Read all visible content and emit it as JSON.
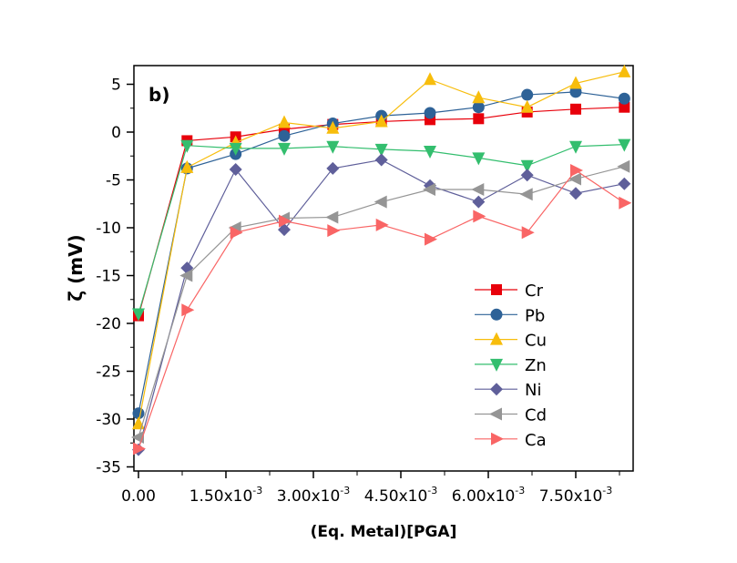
{
  "chart_data": {
    "type": "line",
    "title": "",
    "panel_label": "b)",
    "xlabel": "(Eq. Metal)[PGA]",
    "ylabel": "ζ (mV)",
    "xlim": [
      -0.0001,
      0.00868
    ],
    "ylim": [
      -35,
      7
    ],
    "x_ticks": [
      {
        "value": 0,
        "label": "0.00",
        "exp": ""
      },
      {
        "value": 0.0015,
        "label": "1.50x10",
        "exp": "-3"
      },
      {
        "value": 0.003,
        "label": "3.00x10",
        "exp": "-3"
      },
      {
        "value": 0.0045,
        "label": "4.50x10",
        "exp": "-3"
      },
      {
        "value": 0.006,
        "label": "6.00x10",
        "exp": "-3"
      },
      {
        "value": 0.0075,
        "label": "7.50x10",
        "exp": "-3"
      }
    ],
    "y_ticks": [
      5,
      0,
      -5,
      -10,
      -15,
      -20,
      -25,
      -30,
      -35
    ],
    "y_tick_labels": [
      "5",
      "0",
      "-5",
      "-10",
      "-15",
      "-20",
      "-25",
      "-30",
      "-35"
    ],
    "x": [
      0,
      0.000833,
      0.001667,
      0.0025,
      0.003333,
      0.004167,
      0.005,
      0.005833,
      0.006667,
      0.0075,
      0.008333
    ],
    "legend_position": "bottom-right",
    "series": [
      {
        "name": "Cr",
        "color": "#e8000b",
        "marker": "square",
        "values": [
          -19.2,
          -0.9,
          -0.5,
          0.3,
          0.8,
          1.1,
          1.3,
          1.4,
          2.1,
          2.4,
          2.6
        ]
      },
      {
        "name": "Pb",
        "color": "#2e6297",
        "marker": "circle",
        "values": [
          -29.4,
          -3.8,
          -2.3,
          -0.4,
          0.9,
          1.7,
          2.0,
          2.6,
          3.9,
          4.2,
          3.5
        ]
      },
      {
        "name": "Cu",
        "color": "#f7bd0c",
        "marker": "triangle-up",
        "values": [
          -30.5,
          -3.7,
          -1.1,
          1.0,
          0.4,
          1.1,
          5.5,
          3.6,
          2.6,
          5.1,
          6.3
        ]
      },
      {
        "name": "Zn",
        "color": "#33be6e",
        "marker": "triangle-down",
        "values": [
          -19.0,
          -1.4,
          -1.7,
          -1.7,
          -1.5,
          -1.8,
          -2.0,
          -2.7,
          -3.5,
          -1.5,
          -1.3
        ]
      },
      {
        "name": "Ni",
        "color": "#5f5f9a",
        "marker": "diamond",
        "values": [
          -33.2,
          -14.2,
          -3.9,
          -10.2,
          -3.8,
          -2.9,
          -5.6,
          -7.3,
          -4.5,
          -6.4,
          -5.4
        ]
      },
      {
        "name": "Cd",
        "color": "#959595",
        "marker": "triangle-left",
        "values": [
          -31.9,
          -15.0,
          -10.0,
          -9.0,
          -8.9,
          -7.3,
          -6.0,
          -6.0,
          -6.5,
          -4.9,
          -3.6
        ]
      },
      {
        "name": "Ca",
        "color": "#f96565",
        "marker": "triangle-right",
        "values": [
          -33.1,
          -18.6,
          -10.5,
          -9.3,
          -10.3,
          -9.7,
          -11.2,
          -8.8,
          -10.5,
          -4.0,
          -7.4
        ]
      }
    ]
  }
}
